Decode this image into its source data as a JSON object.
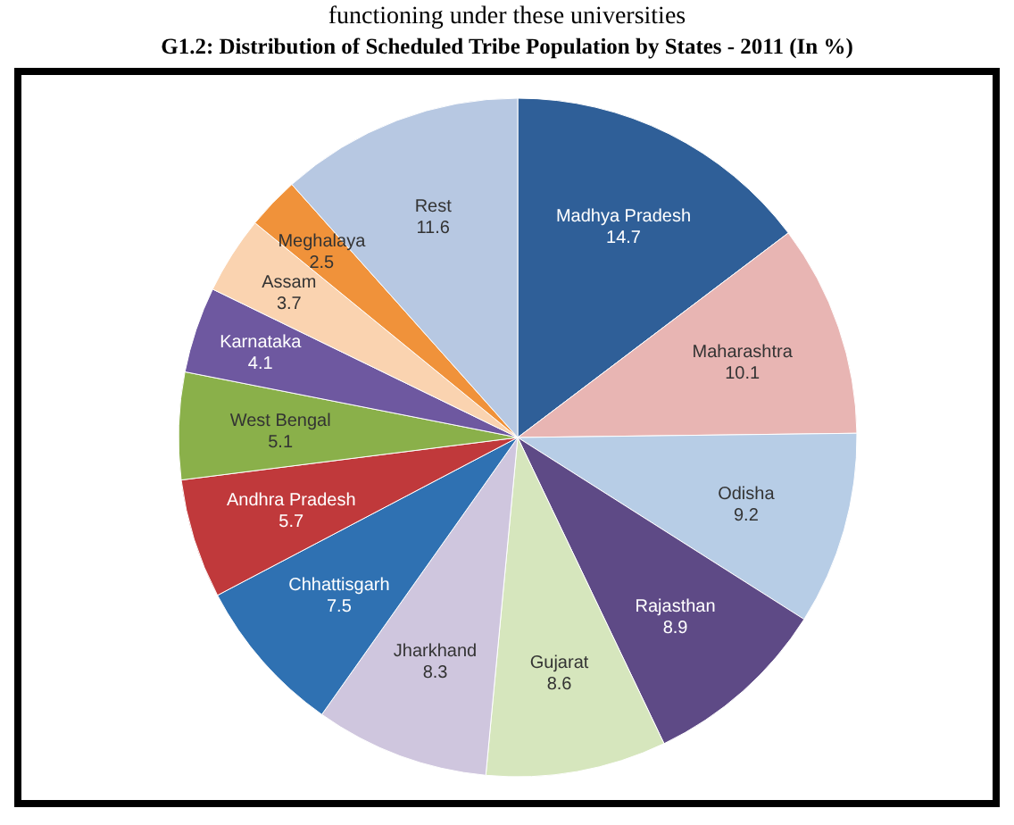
{
  "chart_data": {
    "type": "pie",
    "title": "G1.2: Distribution of Scheduled Tribe Population by States - 2011 (In %)",
    "annotations": [
      "functioning under these universities"
    ],
    "categories": [
      "Madhya Pradesh",
      "Maharashtra",
      "Odisha",
      "Rajasthan",
      "Gujarat",
      "Jharkhand",
      "Chhattisgarh",
      "Andhra Pradesh",
      "West Bengal",
      "Karnataka",
      "Assam",
      "Meghalaya",
      "Rest"
    ],
    "values": [
      14.7,
      10.1,
      9.2,
      8.9,
      8.6,
      8.3,
      7.5,
      5.7,
      5.1,
      4.1,
      3.7,
      2.5,
      11.6
    ],
    "colors": [
      "#2f5f98",
      "#e8b5b3",
      "#b7cde6",
      "#5e4a86",
      "#d6e6bd",
      "#cfc6de",
      "#2f71b2",
      "#c0393b",
      "#8ab04a",
      "#6e58a0",
      "#fad3b0",
      "#f0923a",
      "#b7c8e2"
    ],
    "data_labels": true
  }
}
